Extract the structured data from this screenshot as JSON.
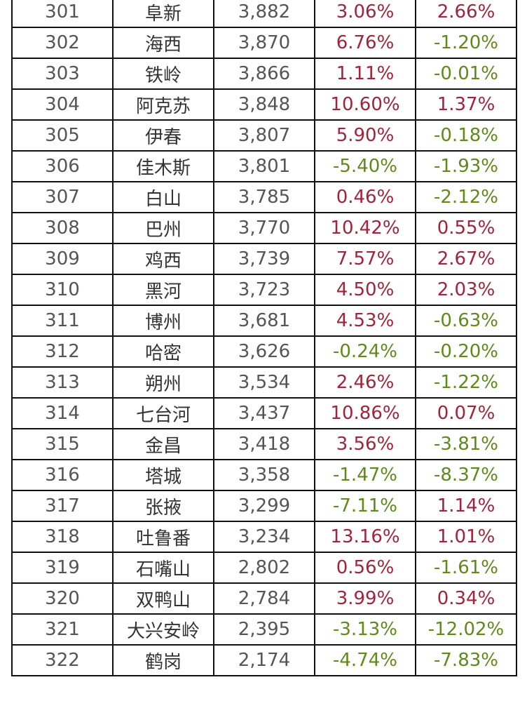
{
  "colors": {
    "positive": "#a3233a",
    "negative": "#5f8a1a",
    "text": "#555555"
  },
  "rows": [
    {
      "rank": "301",
      "city": "阜新",
      "value": "3,882",
      "g1": "3.06%",
      "g2": "2.66%"
    },
    {
      "rank": "302",
      "city": "海西",
      "value": "3,870",
      "g1": "6.76%",
      "g2": "-1.20%"
    },
    {
      "rank": "303",
      "city": "铁岭",
      "value": "3,866",
      "g1": "1.11%",
      "g2": "-0.01%"
    },
    {
      "rank": "304",
      "city": "阿克苏",
      "value": "3,848",
      "g1": "10.60%",
      "g2": "1.37%"
    },
    {
      "rank": "305",
      "city": "伊春",
      "value": "3,807",
      "g1": "5.90%",
      "g2": "-0.18%"
    },
    {
      "rank": "306",
      "city": "佳木斯",
      "value": "3,801",
      "g1": "-5.40%",
      "g2": "-1.93%"
    },
    {
      "rank": "307",
      "city": "白山",
      "value": "3,785",
      "g1": "0.46%",
      "g2": "-2.12%"
    },
    {
      "rank": "308",
      "city": "巴州",
      "value": "3,770",
      "g1": "10.42%",
      "g2": "0.55%"
    },
    {
      "rank": "309",
      "city": "鸡西",
      "value": "3,739",
      "g1": "7.57%",
      "g2": "2.67%"
    },
    {
      "rank": "310",
      "city": "黑河",
      "value": "3,723",
      "g1": "4.50%",
      "g2": "2.03%"
    },
    {
      "rank": "311",
      "city": "博州",
      "value": "3,681",
      "g1": "4.53%",
      "g2": "-0.63%"
    },
    {
      "rank": "312",
      "city": "哈密",
      "value": "3,626",
      "g1": "-0.24%",
      "g2": "-0.20%"
    },
    {
      "rank": "313",
      "city": "朔州",
      "value": "3,534",
      "g1": "2.46%",
      "g2": "-1.22%"
    },
    {
      "rank": "314",
      "city": "七台河",
      "value": "3,437",
      "g1": "10.86%",
      "g2": "0.07%"
    },
    {
      "rank": "315",
      "city": "金昌",
      "value": "3,418",
      "g1": "3.56%",
      "g2": "-3.81%"
    },
    {
      "rank": "316",
      "city": "塔城",
      "value": "3,358",
      "g1": "-1.47%",
      "g2": "-8.37%"
    },
    {
      "rank": "317",
      "city": "张掖",
      "value": "3,299",
      "g1": "-7.11%",
      "g2": "1.14%"
    },
    {
      "rank": "318",
      "city": "吐鲁番",
      "value": "3,234",
      "g1": "13.16%",
      "g2": "1.01%"
    },
    {
      "rank": "319",
      "city": "石嘴山",
      "value": "2,802",
      "g1": "0.56%",
      "g2": "-1.61%"
    },
    {
      "rank": "320",
      "city": "双鸭山",
      "value": "2,784",
      "g1": "3.99%",
      "g2": "0.34%"
    },
    {
      "rank": "321",
      "city": "大兴安岭",
      "value": "2,395",
      "g1": "-3.13%",
      "g2": "-12.02%"
    },
    {
      "rank": "322",
      "city": "鹤岗",
      "value": "2,174",
      "g1": "-4.74%",
      "g2": "-7.83%"
    }
  ]
}
